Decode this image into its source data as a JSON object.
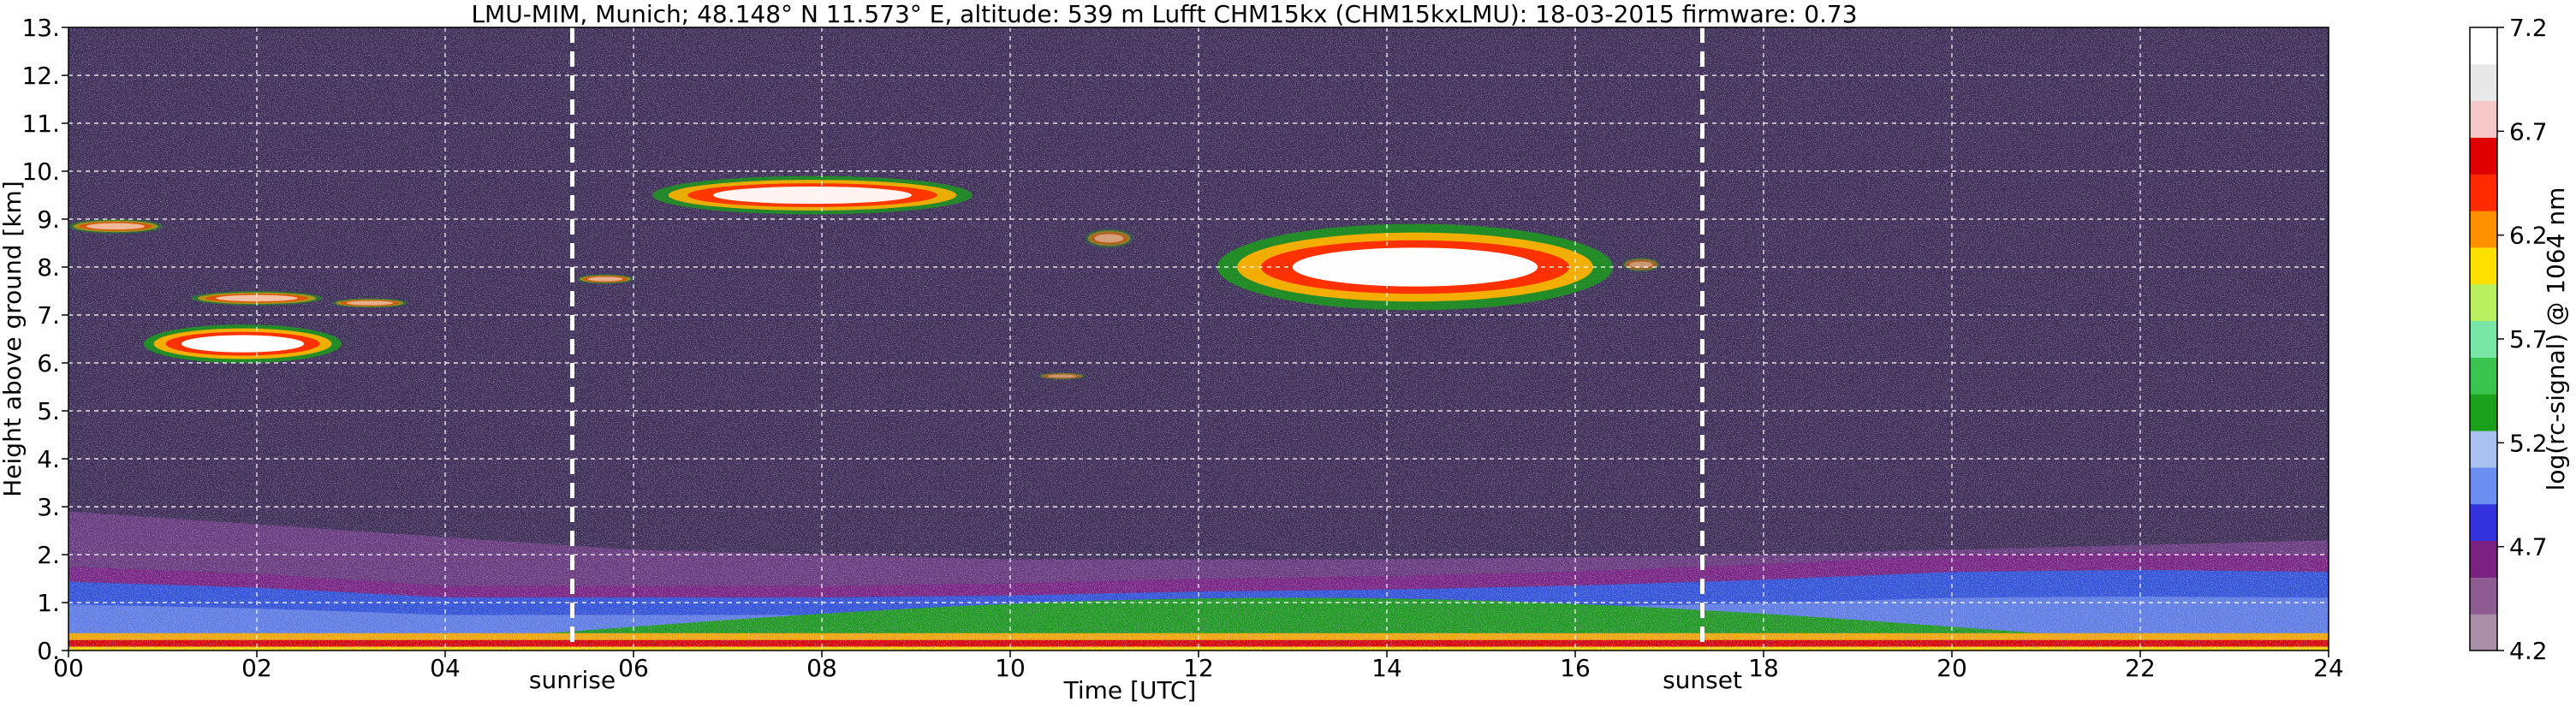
{
  "chart_data": {
    "type": "heatmap",
    "title": "LMU-MIM, Munich; 48.148° N 11.573° E, altitude: 539 m    Lufft CHM15kx (CHM15kxLMU): 18-03-2015    firmware: 0.73",
    "xlabel": "Time [UTC]",
    "ylabel": "Height above ground [km]",
    "xlim": [
      0,
      24
    ],
    "ylim": [
      0,
      13
    ],
    "x_ticks": [
      "00",
      "02",
      "04",
      "06",
      "08",
      "10",
      "12",
      "14",
      "16",
      "18",
      "20",
      "22",
      "24"
    ],
    "y_ticks": [
      "0.",
      "1.",
      "2.",
      "3.",
      "4.",
      "5.",
      "6.",
      "7.",
      "8.",
      "9.",
      "10.",
      "11.",
      "12.",
      "13."
    ],
    "grid": true,
    "markers": [
      {
        "label": "sunrise",
        "time": 5.35
      },
      {
        "label": "sunset",
        "time": 17.35
      }
    ],
    "colorbar": {
      "label": "log(rc-signal) @ 1064 nm",
      "range": [
        4.2,
        7.2
      ],
      "ticks": [
        "4.2",
        "4.7",
        "5.2",
        "5.7",
        "6.2",
        "6.7",
        "7.2"
      ],
      "colors": [
        "#a990a8",
        "#8e5b93",
        "#7a2182",
        "#3333dd",
        "#6b8ff0",
        "#a9c1f0",
        "#1aa01a",
        "#38c44e",
        "#78e6a6",
        "#b8f060",
        "#ffe000",
        "#ff9000",
        "#ff2a00",
        "#e00000",
        "#f4c8c8",
        "#e8e8e8",
        "#ffffff"
      ]
    },
    "features": {
      "boundary_layer_top_km": [
        {
          "t": 0,
          "h": 1.75
        },
        {
          "t": 2,
          "h": 1.6
        },
        {
          "t": 4,
          "h": 1.35
        },
        {
          "t": 6,
          "h": 1.35
        },
        {
          "t": 8,
          "h": 1.35
        },
        {
          "t": 10,
          "h": 1.4
        },
        {
          "t": 12,
          "h": 1.5
        },
        {
          "t": 14,
          "h": 1.55
        },
        {
          "t": 16,
          "h": 1.65
        },
        {
          "t": 18,
          "h": 1.8
        },
        {
          "t": 20,
          "h": 2.0
        },
        {
          "t": 22,
          "h": 2.05
        },
        {
          "t": 24,
          "h": 2.0
        }
      ],
      "residual_layer_top_km": [
        {
          "t": 0,
          "h": 2.9
        },
        {
          "t": 3,
          "h": 2.5
        },
        {
          "t": 6,
          "h": 2.1
        },
        {
          "t": 10,
          "h": 1.9
        },
        {
          "t": 14,
          "h": 1.9
        },
        {
          "t": 18,
          "h": 2.0
        },
        {
          "t": 24,
          "h": 2.3
        }
      ],
      "clouds": [
        {
          "t0": 0.0,
          "t1": 1.0,
          "h0": 8.7,
          "h1": 9.0,
          "intensity": 0.55
        },
        {
          "t0": 1.3,
          "t1": 2.7,
          "h0": 7.2,
          "h1": 7.5,
          "intensity": 0.6
        },
        {
          "t0": 0.8,
          "t1": 2.9,
          "h0": 6.0,
          "h1": 6.8,
          "intensity": 0.95
        },
        {
          "t0": 2.8,
          "t1": 3.6,
          "h0": 7.15,
          "h1": 7.35,
          "intensity": 0.5
        },
        {
          "t0": 5.4,
          "t1": 6.0,
          "h0": 7.65,
          "h1": 7.85,
          "intensity": 0.5
        },
        {
          "t0": 6.2,
          "t1": 9.6,
          "h0": 9.1,
          "h1": 9.9,
          "intensity": 0.9
        },
        {
          "t0": 10.3,
          "t1": 10.8,
          "h0": 5.65,
          "h1": 5.8,
          "intensity": 0.35
        },
        {
          "t0": 10.8,
          "t1": 11.3,
          "h0": 8.4,
          "h1": 8.8,
          "intensity": 0.4
        },
        {
          "t0": 12.2,
          "t1": 16.4,
          "h0": 7.1,
          "h1": 8.9,
          "intensity": 0.95
        },
        {
          "t0": 16.5,
          "t1": 16.9,
          "h0": 7.9,
          "h1": 8.2,
          "intensity": 0.35
        }
      ]
    }
  }
}
